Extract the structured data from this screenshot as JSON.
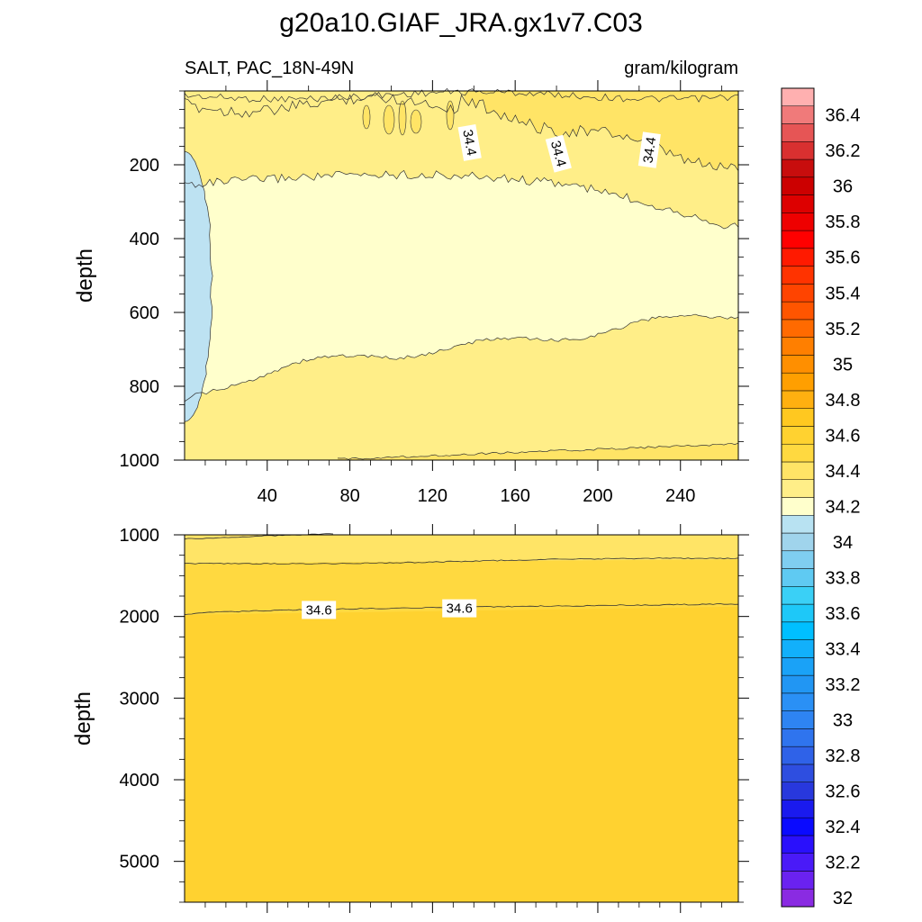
{
  "chart_data": {
    "type": "heatmap",
    "title": "g20a10.GIAF_JRA.gx1v7.C03",
    "variable_label": "SALT, PAC_18N-49N",
    "units_label": "gram/kilogram",
    "ylabel": "depth",
    "x_ticks": [
      40,
      80,
      120,
      160,
      200,
      240
    ],
    "xlim": [
      0,
      268
    ],
    "panels": [
      {
        "name": "upper",
        "ylim": [
          0,
          1000
        ],
        "y_ticks": [
          200,
          400,
          600,
          800,
          1000
        ],
        "contour_labels": [
          {
            "text": "34.4",
            "x": 138,
            "y": 140
          },
          {
            "text": "34.4",
            "x": 181,
            "y": 170
          },
          {
            "text": "34.4",
            "x": 225,
            "y": 160
          }
        ]
      },
      {
        "name": "lower",
        "ylim": [
          1000,
          5500
        ],
        "y_ticks": [
          1000,
          2000,
          3000,
          4000,
          5000
        ],
        "contour_labels": [
          {
            "text": "34.6",
            "x": 65,
            "y": 1920
          },
          {
            "text": "34.6",
            "x": 133,
            "y": 1900
          }
        ]
      }
    ],
    "colorbar": {
      "levels": [
        32,
        32.1,
        32.2,
        32.3,
        32.4,
        32.5,
        32.6,
        32.7,
        32.8,
        32.9,
        33,
        33.1,
        33.2,
        33.3,
        33.4,
        33.5,
        33.6,
        33.7,
        33.8,
        33.9,
        34,
        34.1,
        34.2,
        34.3,
        34.4,
        34.5,
        34.6,
        34.7,
        34.8,
        34.9,
        35,
        35.1,
        35.2,
        35.3,
        35.4,
        35.5,
        35.6,
        35.7,
        35.8,
        35.9,
        36,
        36.1,
        36.2,
        36.3,
        36.4,
        36.5
      ],
      "labels": [
        "32",
        "32.2",
        "32.4",
        "32.6",
        "32.8",
        "33",
        "33.2",
        "33.4",
        "33.6",
        "33.8",
        "34",
        "34.2",
        "34.4",
        "34.6",
        "34.8",
        "35",
        "35.2",
        "35.4",
        "35.6",
        "35.8",
        "36",
        "36.2",
        "36.4"
      ],
      "colors": [
        "#8a2be2",
        "#6a22f0",
        "#4a1af8",
        "#2a10fc",
        "#0a0aff",
        "#1a1aee",
        "#2838dd",
        "#2e4ee0",
        "#2f62e8",
        "#2f74ee",
        "#2e84f2",
        "#2a90f5",
        "#2196f3",
        "#1aa2f7",
        "#12b0fb",
        "#00bfff",
        "#1ec8f8",
        "#3ad0f6",
        "#5fcaf2",
        "#7fcef0",
        "#a0d4ec",
        "#b8e2f2",
        "#ffffcc",
        "#ffee88",
        "#ffe466",
        "#ffd940",
        "#ffd230",
        "#ffc820",
        "#ffb010",
        "#ff9f00",
        "#ff8f00",
        "#ff7f00",
        "#ff6a00",
        "#ff5500",
        "#ff4400",
        "#ff3300",
        "#ff1a00",
        "#ff0000",
        "#ee0000",
        "#dd0000",
        "#cc0000",
        "#c80d0d",
        "#d93030",
        "#e65555",
        "#f07a7a",
        "#ffb0b0"
      ]
    }
  }
}
